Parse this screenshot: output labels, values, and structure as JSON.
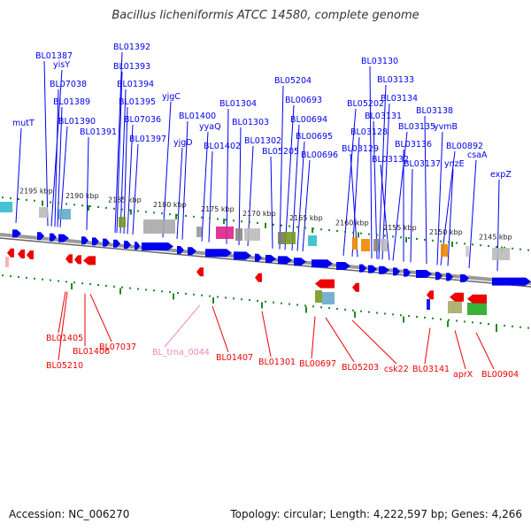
{
  "title": "Bacillus licheniformis ATCC 14580, complete genome",
  "footer": {
    "accession": "Accession: NC_006270",
    "topology": "Topology: circular; Length: 4,222,597 bp; Genes: 4,266"
  },
  "colors": {
    "forward_gene": "#0000ee",
    "reverse_gene": "#ee0000",
    "trna_label": "#ee88bb",
    "tick": "#228822",
    "backbone": "#888888"
  },
  "scale_ticks": [
    "2195 kbp",
    "2190 kbp",
    "2185 kbp",
    "2180 kbp",
    "2175 kbp",
    "2170 kbp",
    "2165 kbp",
    "2160 kbp",
    "2155 kbp",
    "2150 kbp",
    "2145 kbp"
  ],
  "top_labels": [
    "BL01387",
    "yisY",
    "BL07038",
    "BL01389",
    "BL01390",
    "BL01391",
    "mutT",
    "BL01392",
    "BL01393",
    "BL01394",
    "BL01395",
    "BL07036",
    "BL01397",
    "yjgC",
    "BL01400",
    "yjgD",
    "yyaQ",
    "BL01402",
    "BL01304",
    "BL01303",
    "BL01302",
    "BL05205",
    "BL05204",
    "BL00693",
    "BL00694",
    "BL00695",
    "BL00696",
    "BL05202",
    "BL03128",
    "BL03129",
    "BL03130",
    "BL03133",
    "BL03134",
    "BL03131",
    "BL03135",
    "BL03132",
    "BL03136",
    "BL03137",
    "BL03138",
    "yvmB",
    "BL00892",
    "ynzE",
    "csaA",
    "expZ"
  ],
  "bottom_labels": [
    "BL01405",
    "BL05210",
    "BL01406",
    "BL07037",
    "BL_trna_0044",
    "BL01407",
    "BL01301",
    "BL00697",
    "BL05203",
    "csk22",
    "BL03141",
    "aprX",
    "BL00904"
  ]
}
